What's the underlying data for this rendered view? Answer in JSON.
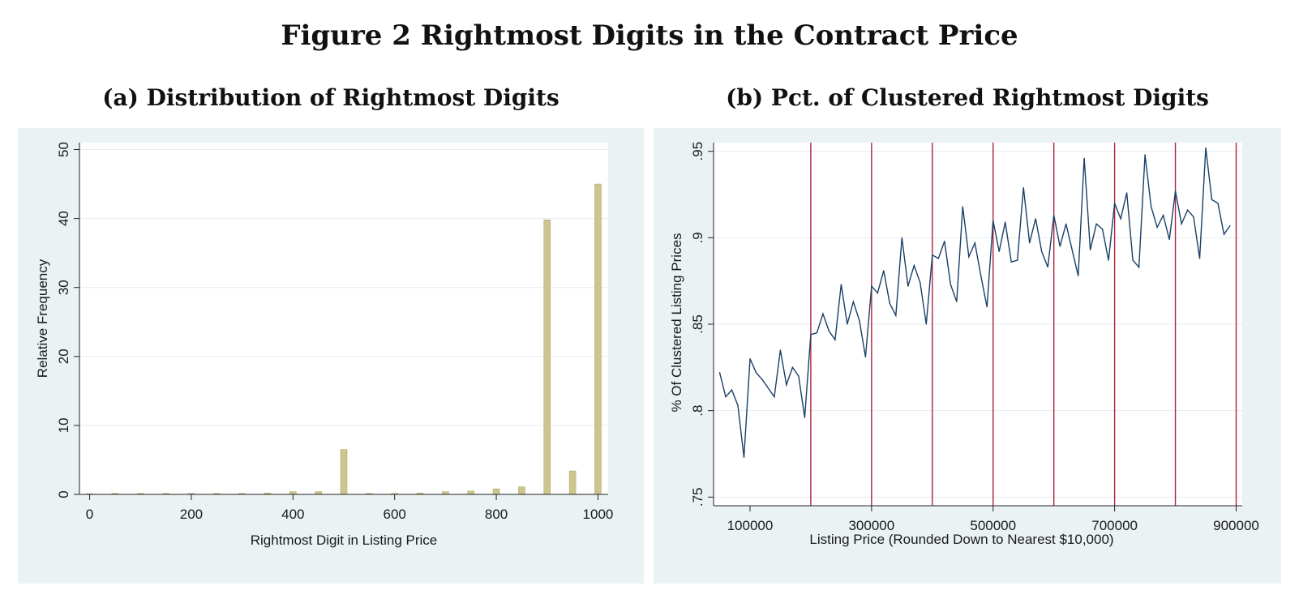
{
  "figure": {
    "title": "Figure 2 Rightmost Digits in the Contract Price"
  },
  "chart_data": [
    {
      "type": "bar",
      "panel_title": "(a) Distribution of Rightmost Digits",
      "xlabel": "Rightmost Digit in Listing Price",
      "ylabel": "Relative Frequency",
      "xlim": [
        -20,
        1020
      ],
      "ylim": [
        0,
        51
      ],
      "xticks": [
        0,
        200,
        400,
        600,
        800,
        1000
      ],
      "yticks": [
        0,
        10,
        20,
        30,
        40,
        50
      ],
      "grid": true,
      "bar_color": "#cdc58e",
      "x": [
        0,
        50,
        100,
        150,
        200,
        250,
        300,
        350,
        400,
        450,
        500,
        550,
        600,
        650,
        700,
        750,
        800,
        850,
        900,
        950,
        1000
      ],
      "values": [
        0.1,
        0.15,
        0.15,
        0.15,
        0.15,
        0.15,
        0.15,
        0.2,
        0.4,
        0.4,
        6.5,
        0.15,
        0.15,
        0.2,
        0.4,
        0.5,
        0.8,
        1.1,
        39.8,
        3.4,
        45.0
      ]
    },
    {
      "type": "line",
      "panel_title": "(b) Pct. of Clustered Rightmost Digits",
      "xlabel": "Listing Price (Rounded Down to Nearest $10,000)",
      "ylabel": "% Of Clustered Listing Prices",
      "xlim": [
        40000,
        910000
      ],
      "ylim": [
        0.745,
        0.955
      ],
      "xticks": [
        100000,
        300000,
        500000,
        700000,
        900000
      ],
      "yticks": [
        0.75,
        0.8,
        0.85,
        0.9,
        0.95
      ],
      "ytick_labels": [
        ".75",
        ".8",
        ".85",
        ".9",
        ".95"
      ],
      "grid": true,
      "line_color": "#1a3f66",
      "vline_color": "#b0213a",
      "vlines": [
        200000,
        300000,
        400000,
        500000,
        600000,
        700000,
        800000,
        900000
      ],
      "x": [
        50000,
        60000,
        70000,
        80000,
        90000,
        100000,
        110000,
        120000,
        130000,
        140000,
        150000,
        160000,
        170000,
        180000,
        190000,
        200000,
        210000,
        220000,
        230000,
        240000,
        250000,
        260000,
        270000,
        280000,
        290000,
        300000,
        310000,
        320000,
        330000,
        340000,
        350000,
        360000,
        370000,
        380000,
        390000,
        400000,
        410000,
        420000,
        430000,
        440000,
        450000,
        460000,
        470000,
        480000,
        490000,
        500000,
        510000,
        520000,
        530000,
        540000,
        550000,
        560000,
        570000,
        580000,
        590000,
        600000,
        610000,
        620000,
        630000,
        640000,
        650000,
        660000,
        670000,
        680000,
        690000,
        700000,
        710000,
        720000,
        730000,
        740000,
        750000,
        760000,
        770000,
        780000,
        790000,
        800000,
        810000,
        820000,
        830000,
        840000,
        850000,
        860000,
        870000,
        880000,
        890000
      ],
      "values": [
        0.822,
        0.808,
        0.812,
        0.803,
        0.773,
        0.83,
        0.822,
        0.818,
        0.813,
        0.808,
        0.835,
        0.815,
        0.825,
        0.82,
        0.796,
        0.844,
        0.845,
        0.856,
        0.846,
        0.841,
        0.873,
        0.85,
        0.863,
        0.852,
        0.831,
        0.872,
        0.868,
        0.881,
        0.862,
        0.855,
        0.9,
        0.872,
        0.884,
        0.874,
        0.85,
        0.89,
        0.888,
        0.898,
        0.873,
        0.863,
        0.918,
        0.889,
        0.897,
        0.878,
        0.86,
        0.91,
        0.892,
        0.909,
        0.886,
        0.887,
        0.929,
        0.897,
        0.911,
        0.892,
        0.883,
        0.913,
        0.895,
        0.908,
        0.893,
        0.878,
        0.946,
        0.893,
        0.908,
        0.905,
        0.887,
        0.92,
        0.911,
        0.926,
        0.887,
        0.883,
        0.948,
        0.918,
        0.906,
        0.913,
        0.899,
        0.927,
        0.908,
        0.916,
        0.912,
        0.888,
        0.952,
        0.922,
        0.92,
        0.902,
        0.907
      ]
    }
  ]
}
